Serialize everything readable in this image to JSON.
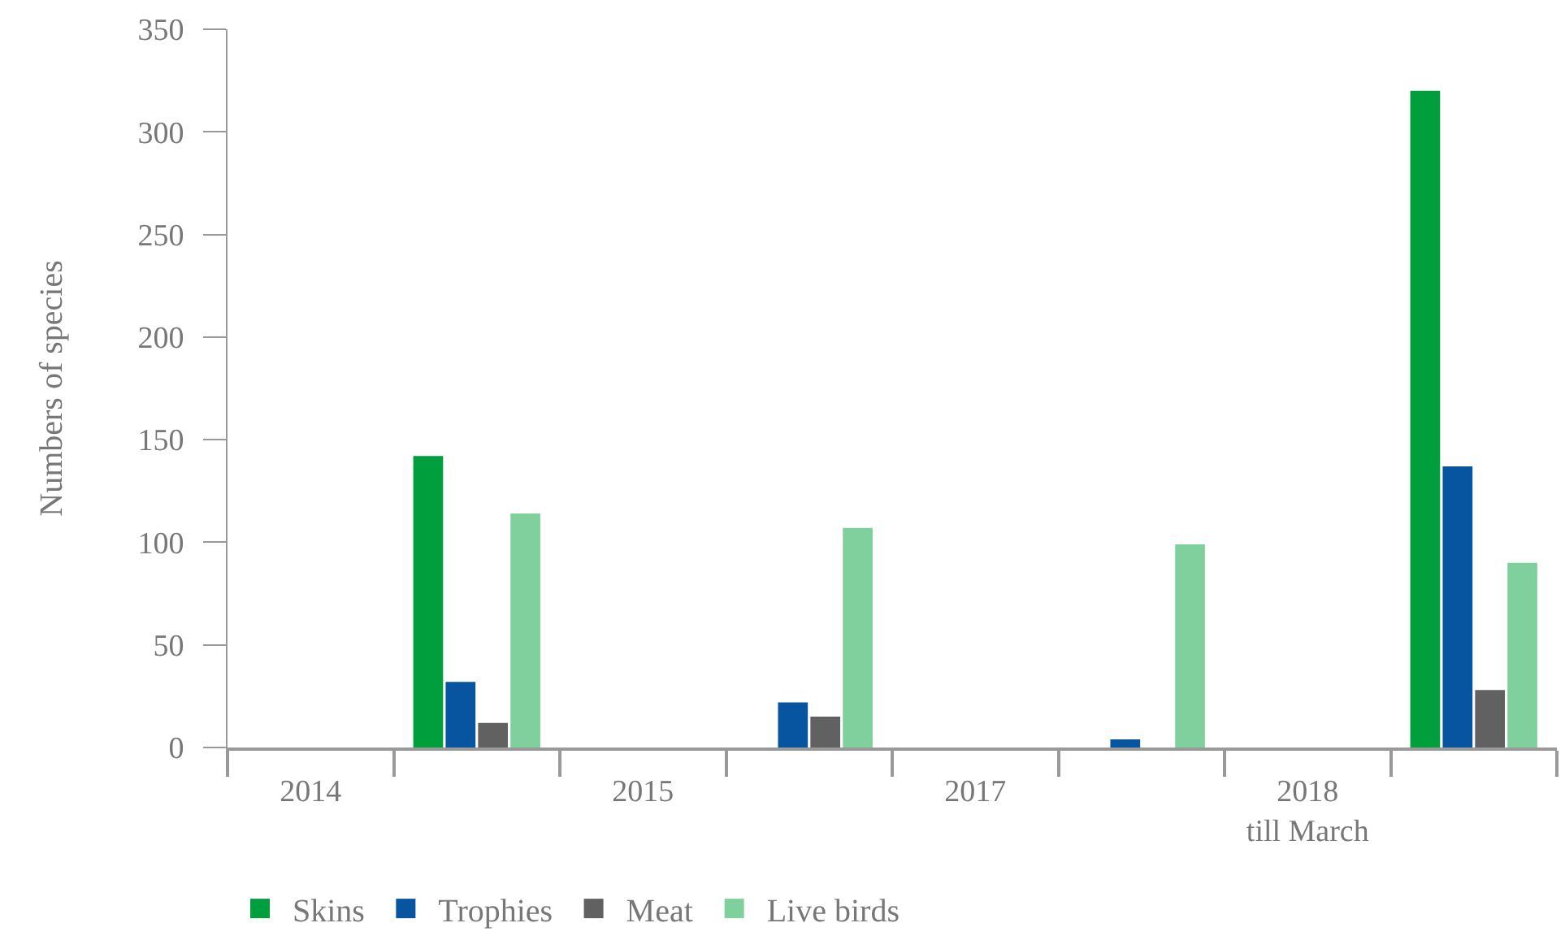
{
  "chart_data": {
    "type": "bar",
    "ylabel": "Numbers of species",
    "categories": [
      "2014",
      null,
      "2015",
      null,
      "2017",
      null,
      "2018\ntill March",
      null
    ],
    "series": [
      {
        "name": "Skins",
        "color": "#009e3d",
        "values": [
          null,
          142,
          null,
          0,
          null,
          0,
          null,
          320
        ]
      },
      {
        "name": "Trophies",
        "color": "#0754a0",
        "values": [
          null,
          32,
          null,
          22,
          null,
          4,
          null,
          137
        ]
      },
      {
        "name": "Meat",
        "color": "#616161",
        "values": [
          null,
          12,
          null,
          15,
          null,
          0,
          null,
          28
        ]
      },
      {
        "name": "Live birds",
        "color": "#80d09e",
        "values": [
          null,
          114,
          null,
          107,
          null,
          99,
          null,
          90
        ]
      }
    ],
    "ylim": [
      0,
      350
    ],
    "yticks": [
      0,
      50,
      100,
      150,
      200,
      250,
      300,
      350
    ],
    "legend": "bottom"
  }
}
